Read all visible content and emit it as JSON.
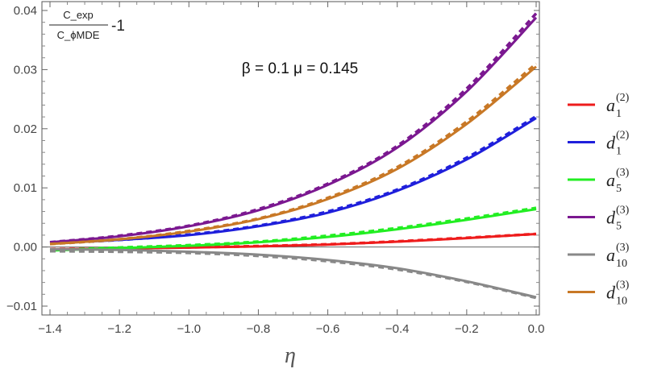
{
  "chart_data": {
    "type": "line",
    "title": "",
    "xlabel": "η",
    "ylabel": {
      "numerator": "C_exp",
      "denominator": "C_ϕMDE",
      "suffix": "-1"
    },
    "annotation": "β = 0.1 μ = 0.145",
    "xlim": [
      -1.4,
      0.0
    ],
    "ylim": [
      -0.0115,
      0.0415
    ],
    "xticks": [
      -1.4,
      -1.2,
      -1.0,
      -0.8,
      -0.6,
      -0.4,
      -0.2,
      0.0
    ],
    "xtick_labels": [
      "−1.4",
      "−1.2",
      "−1.0",
      "−0.8",
      "−0.6",
      "−0.4",
      "−0.2",
      "0.0"
    ],
    "yticks": [
      -0.01,
      0.0,
      0.01,
      0.02,
      0.03,
      0.04
    ],
    "ytick_labels": [
      "−0.01",
      "0.00",
      "0.01",
      "0.02",
      "0.03",
      "0.04"
    ],
    "grid": false,
    "zero_line": true,
    "legend_position": "right",
    "line_styles": [
      "solid",
      "dashed"
    ],
    "x": [
      -1.4,
      -1.2,
      -1.0,
      -0.8,
      -0.6,
      -0.4,
      -0.2,
      0.0
    ],
    "series": [
      {
        "base": "a",
        "sub": "1",
        "sup": "(2)",
        "color": "#ee1c1c",
        "values": [
          -0.0004,
          -0.00025,
          -0.0001,
          0.0001,
          0.0004,
          0.0009,
          0.0015,
          0.0022
        ],
        "dashed_values": [
          -0.0004,
          -0.0002,
          -5e-05,
          0.00015,
          0.00045,
          0.00095,
          0.00155,
          0.0022
        ]
      },
      {
        "base": "d",
        "sub": "1",
        "sup": "(2)",
        "color": "#1f1fdb",
        "values": [
          0.0006,
          0.0012,
          0.002,
          0.0035,
          0.0058,
          0.0095,
          0.0148,
          0.0218
        ],
        "dashed_values": [
          0.0006,
          0.0012,
          0.0021,
          0.0036,
          0.006,
          0.0097,
          0.0151,
          0.0221
        ]
      },
      {
        "base": "a",
        "sub": "5",
        "sup": "(3)",
        "color": "#22ee22",
        "values": [
          -0.0006,
          -0.0002,
          0.0002,
          0.0008,
          0.0017,
          0.003,
          0.0046,
          0.0064
        ],
        "dashed_values": [
          -0.0006,
          -0.0001,
          0.0003,
          0.0009,
          0.0019,
          0.0032,
          0.0048,
          0.0066
        ]
      },
      {
        "base": "d",
        "sub": "5",
        "sup": "(3)",
        "color": "#7b1890",
        "values": [
          0.0008,
          0.0018,
          0.0035,
          0.0062,
          0.0105,
          0.0168,
          0.0263,
          0.0388
        ],
        "dashed_values": [
          0.0008,
          0.0019,
          0.0036,
          0.0064,
          0.0107,
          0.0171,
          0.0268,
          0.0395
        ]
      },
      {
        "base": "a",
        "sub": "10",
        "sup": "(3)",
        "color": "#888888",
        "values": [
          -0.0004,
          -0.0005,
          -0.0008,
          -0.0013,
          -0.0022,
          -0.0036,
          -0.0058,
          -0.0085
        ],
        "dashed_values": [
          -0.0007,
          -0.0008,
          -0.001,
          -0.0015,
          -0.0024,
          -0.0038,
          -0.0059,
          -0.0086
        ]
      },
      {
        "base": "d",
        "sub": "10",
        "sup": "(3)",
        "color": "#c87826",
        "values": [
          0.0005,
          0.0013,
          0.0026,
          0.0047,
          0.0081,
          0.0132,
          0.0208,
          0.0305
        ],
        "dashed_values": [
          0.0005,
          0.0013,
          0.0027,
          0.0048,
          0.0083,
          0.0135,
          0.0212,
          0.031
        ]
      }
    ]
  }
}
